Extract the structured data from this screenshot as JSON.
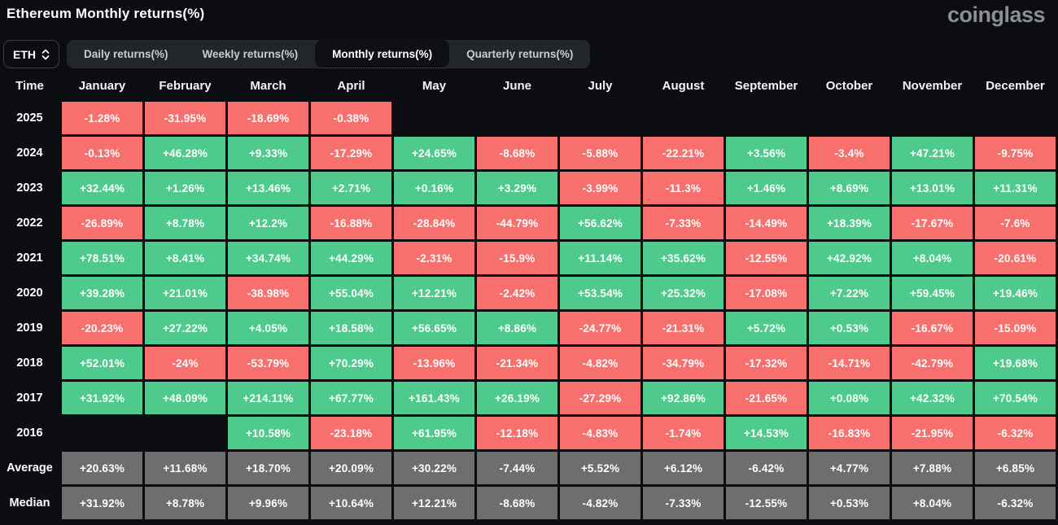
{
  "header": {
    "title": "Ethereum Monthly returns(%)",
    "brand": "coinglass"
  },
  "controls": {
    "symbol_select": {
      "value": "ETH",
      "icon": "chevron-up-down-icon"
    },
    "tabs": [
      {
        "label": "Daily returns(%)",
        "active": false
      },
      {
        "label": "Weekly returns(%)",
        "active": false
      },
      {
        "label": "Monthly returns(%)",
        "active": true
      },
      {
        "label": "Quarterly returns(%)",
        "active": false
      }
    ]
  },
  "chart_data": {
    "type": "table",
    "title": "Ethereum Monthly returns(%)",
    "columns": [
      "Time",
      "January",
      "February",
      "March",
      "April",
      "May",
      "June",
      "July",
      "August",
      "September",
      "October",
      "November",
      "December"
    ],
    "rows": [
      {
        "label": "2025",
        "summary": false,
        "values": [
          "-1.28%",
          "-31.95%",
          "-18.69%",
          "-0.38%",
          "",
          "",
          "",
          "",
          "",
          "",
          "",
          ""
        ]
      },
      {
        "label": "2024",
        "summary": false,
        "values": [
          "-0.13%",
          "+46.28%",
          "+9.33%",
          "-17.29%",
          "+24.65%",
          "-8.68%",
          "-5.88%",
          "-22.21%",
          "+3.56%",
          "-3.4%",
          "+47.21%",
          "-9.75%"
        ]
      },
      {
        "label": "2023",
        "summary": false,
        "values": [
          "+32.44%",
          "+1.26%",
          "+13.46%",
          "+2.71%",
          "+0.16%",
          "+3.29%",
          "-3.99%",
          "-11.3%",
          "+1.46%",
          "+8.69%",
          "+13.01%",
          "+11.31%"
        ]
      },
      {
        "label": "2022",
        "summary": false,
        "values": [
          "-26.89%",
          "+8.78%",
          "+12.2%",
          "-16.88%",
          "-28.84%",
          "-44.79%",
          "+56.62%",
          "-7.33%",
          "-14.49%",
          "+18.39%",
          "-17.67%",
          "-7.6%"
        ]
      },
      {
        "label": "2021",
        "summary": false,
        "values": [
          "+78.51%",
          "+8.41%",
          "+34.74%",
          "+44.29%",
          "-2.31%",
          "-15.9%",
          "+11.14%",
          "+35.62%",
          "-12.55%",
          "+42.92%",
          "+8.04%",
          "-20.61%"
        ]
      },
      {
        "label": "2020",
        "summary": false,
        "values": [
          "+39.28%",
          "+21.01%",
          "-38.98%",
          "+55.04%",
          "+12.21%",
          "-2.42%",
          "+53.54%",
          "+25.32%",
          "-17.08%",
          "+7.22%",
          "+59.45%",
          "+19.46%"
        ]
      },
      {
        "label": "2019",
        "summary": false,
        "values": [
          "-20.23%",
          "+27.22%",
          "+4.05%",
          "+18.58%",
          "+56.65%",
          "+8.86%",
          "-24.77%",
          "-21.31%",
          "+5.72%",
          "+0.53%",
          "-16.67%",
          "-15.09%"
        ]
      },
      {
        "label": "2018",
        "summary": false,
        "values": [
          "+52.01%",
          "-24%",
          "-53.79%",
          "+70.29%",
          "-13.96%",
          "-21.34%",
          "-4.82%",
          "-34.79%",
          "-17.32%",
          "-14.71%",
          "-42.79%",
          "+19.68%"
        ]
      },
      {
        "label": "2017",
        "summary": false,
        "values": [
          "+31.92%",
          "+48.09%",
          "+214.11%",
          "+67.77%",
          "+161.43%",
          "+26.19%",
          "-27.29%",
          "+92.86%",
          "-21.65%",
          "+0.08%",
          "+42.32%",
          "+70.54%"
        ]
      },
      {
        "label": "2016",
        "summary": false,
        "values": [
          "",
          "",
          "+10.58%",
          "-23.18%",
          "+61.95%",
          "-12.18%",
          "-4.83%",
          "-1.74%",
          "+14.53%",
          "-16.83%",
          "-21.95%",
          "-6.32%"
        ]
      },
      {
        "label": "Average",
        "summary": true,
        "values": [
          "+20.63%",
          "+11.68%",
          "+18.70%",
          "+20.09%",
          "+30.22%",
          "-7.44%",
          "+5.52%",
          "+6.12%",
          "-6.42%",
          "+4.77%",
          "+7.88%",
          "+6.85%"
        ]
      },
      {
        "label": "Median",
        "summary": true,
        "values": [
          "+31.92%",
          "+8.78%",
          "+9.96%",
          "+10.64%",
          "+12.21%",
          "-8.68%",
          "-4.82%",
          "-7.33%",
          "-12.55%",
          "+0.53%",
          "+8.04%",
          "-6.32%"
        ]
      }
    ],
    "colors": {
      "positive": "#4ecb8c",
      "negative": "#f7706e",
      "summary": "#6e6e70",
      "background": "#0b0d10",
      "tab_bar": "#22252a",
      "active_tab": "#0e1013"
    },
    "legend_position": "none",
    "grid": false
  }
}
